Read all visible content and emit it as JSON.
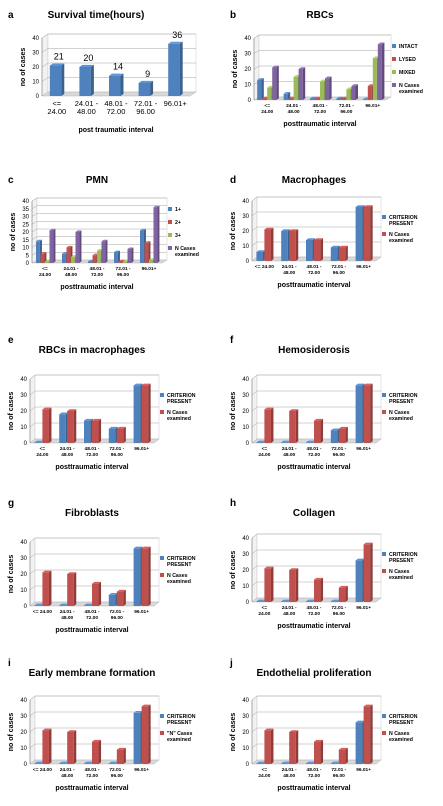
{
  "chart_data": [
    {
      "panel_label": "a",
      "type": "bar",
      "title": "Survival time(hours)",
      "xlabel": "post traumatic interval",
      "ylabel": "no of cases",
      "ylim": [
        0,
        40
      ],
      "yticks": [
        0,
        10,
        20,
        30,
        40
      ],
      "categories": [
        [
          "<=",
          "24.00"
        ],
        [
          "24.01 -",
          "48.00"
        ],
        [
          "48.01 -",
          "72.00"
        ],
        [
          "72.01 -",
          "96.00"
        ],
        [
          "96.01+"
        ]
      ],
      "series": [
        {
          "values": [
            21,
            20,
            14,
            9,
            36
          ],
          "color": "#4f81bd"
        }
      ],
      "data_labels": [
        "21",
        "20",
        "14",
        "9",
        "36"
      ],
      "legend": "none"
    },
    {
      "panel_label": "b",
      "type": "bar",
      "title": "RBCs",
      "xlabel": "posttraumatic interval",
      "ylabel": "no of cases",
      "ylim": [
        0,
        40
      ],
      "yticks": [
        0,
        10,
        20,
        30,
        40
      ],
      "categories": [
        [
          "<=",
          "24.00"
        ],
        [
          "24.01 -",
          "48.00"
        ],
        [
          "48.01 -",
          "72.00"
        ],
        [
          "72.01 -",
          "96.00"
        ],
        [
          "96.01+"
        ]
      ],
      "series": [
        {
          "name": "INTACT",
          "values": [
            13,
            4,
            1,
            1,
            0
          ],
          "color": "#4f81bd"
        },
        {
          "name": "LYSED",
          "values": [
            1,
            1,
            1,
            1,
            9
          ],
          "color": "#c0504d"
        },
        {
          "name": "MIXED",
          "values": [
            8,
            15,
            12,
            7,
            27
          ],
          "color": "#9bbb59"
        },
        {
          "name": [
            "N Cases",
            "examined"
          ],
          "values": [
            21,
            20,
            14,
            9,
            36
          ],
          "color": "#8064a2"
        }
      ],
      "legend": "right"
    },
    {
      "panel_label": "c",
      "type": "bar",
      "title": "PMN",
      "xlabel": "posttraumatic interval",
      "ylabel": "no of cases",
      "ylim": [
        0,
        40
      ],
      "yticks": [
        0,
        5,
        10,
        15,
        20,
        25,
        30,
        35,
        40
      ],
      "categories": [
        [
          "<=",
          "24.00"
        ],
        [
          "24.01 -",
          "48.00"
        ],
        [
          "48.01 -",
          "72.00"
        ],
        [
          "72.01 -",
          "96.00"
        ],
        [
          "96.01+"
        ]
      ],
      "series": [
        {
          "name": "1+",
          "values": [
            14,
            6,
            1,
            7,
            21
          ],
          "color": "#4f81bd"
        },
        {
          "name": "2+",
          "values": [
            6,
            10,
            5,
            1,
            13
          ],
          "color": "#c0504d"
        },
        {
          "name": "3+",
          "values": [
            1,
            4,
            8,
            1,
            2
          ],
          "color": "#9bbb59"
        },
        {
          "name": [
            "N Cases",
            "examined"
          ],
          "values": [
            21,
            20,
            14,
            9,
            36
          ],
          "color": "#8064a2"
        }
      ],
      "legend": "right"
    },
    {
      "panel_label": "d",
      "type": "bar",
      "title": "Macrophages",
      "xlabel": "posttraumatic interval",
      "ylabel": "no of cases",
      "ylim": [
        0,
        40
      ],
      "yticks": [
        0,
        10,
        20,
        30,
        40
      ],
      "categories": [
        [
          "<= 24.00"
        ],
        [
          "24.01 -",
          "48.00"
        ],
        [
          "48.01 -",
          "72.00"
        ],
        [
          "72.01 -",
          "96.00"
        ],
        [
          "96.01+"
        ]
      ],
      "series": [
        {
          "name": [
            "CRITERION",
            "PRESENT"
          ],
          "values": [
            6,
            20,
            14,
            9,
            36
          ],
          "color": "#4f81bd"
        },
        {
          "name": [
            "N Cases",
            "examined"
          ],
          "values": [
            21,
            20,
            14,
            9,
            36
          ],
          "color": "#c0504d"
        }
      ],
      "legend": "right"
    },
    {
      "panel_label": "e",
      "type": "bar",
      "title": "RBCs in macrophages",
      "xlabel": "posttraumatic interval",
      "ylabel": "no of cases",
      "ylim": [
        0,
        40
      ],
      "yticks": [
        0,
        10,
        20,
        30,
        40
      ],
      "categories": [
        [
          "<=",
          "24.00"
        ],
        [
          "24.01 -",
          "48.00"
        ],
        [
          "48.01 -",
          "72.00"
        ],
        [
          "72.01 -",
          "96.00"
        ],
        [
          "96.01+"
        ]
      ],
      "series": [
        {
          "name": [
            "CRITERION",
            "PRESENT"
          ],
          "values": [
            0,
            18,
            14,
            9,
            36
          ],
          "color": "#4f81bd"
        },
        {
          "name": [
            "N Cases",
            "examined"
          ],
          "values": [
            21,
            20,
            14,
            9,
            36
          ],
          "color": "#c0504d"
        }
      ],
      "legend": "right"
    },
    {
      "panel_label": "f",
      "type": "bar",
      "title": "Hemosiderosis",
      "xlabel": "posttraumatic interval",
      "ylabel": "no of cases",
      "ylim": [
        0,
        40
      ],
      "yticks": [
        0,
        10,
        20,
        30,
        40
      ],
      "categories": [
        [
          "<=",
          "24.00"
        ],
        [
          "24.01 -",
          "48.00"
        ],
        [
          "48.01 -",
          "72.00"
        ],
        [
          "72.01 -",
          "96.00"
        ],
        [
          "96.01+"
        ]
      ],
      "series": [
        {
          "name": [
            "CRITERION",
            "PRESENT"
          ],
          "values": [
            0,
            0,
            0,
            8,
            36
          ],
          "color": "#4f81bd"
        },
        {
          "name": [
            "N Cases",
            "examined"
          ],
          "values": [
            21,
            20,
            14,
            9,
            36
          ],
          "color": "#c0504d"
        }
      ],
      "legend": "right"
    },
    {
      "panel_label": "g",
      "type": "bar",
      "title": "Fibroblasts",
      "xlabel": "posttraumatic interval",
      "ylabel": "no of cases",
      "ylim": [
        0,
        40
      ],
      "yticks": [
        0,
        10,
        20,
        30,
        40
      ],
      "categories": [
        [
          "<= 24.00"
        ],
        [
          "24.01 -",
          "48.00"
        ],
        [
          "48.01 -",
          "72.00"
        ],
        [
          "72.01 -",
          "96.00"
        ],
        [
          "96.01+"
        ]
      ],
      "series": [
        {
          "name": [
            "CRITERION",
            "PRESENT"
          ],
          "values": [
            0,
            0,
            0,
            7,
            36
          ],
          "color": "#4f81bd"
        },
        {
          "name": [
            "N Cases",
            "examined"
          ],
          "values": [
            21,
            20,
            14,
            9,
            36
          ],
          "color": "#c0504d"
        }
      ],
      "legend": "right"
    },
    {
      "panel_label": "h",
      "type": "bar",
      "title": "Collagen",
      "xlabel": "posttraumatic interval",
      "ylabel": "no of cases",
      "ylim": [
        0,
        40
      ],
      "yticks": [
        0,
        10,
        20,
        30,
        40
      ],
      "categories": [
        [
          "<=",
          "24.00"
        ],
        [
          "24.01 -",
          "48.00"
        ],
        [
          "48.01 -",
          "72.00"
        ],
        [
          "72.01 -",
          "96.00"
        ],
        [
          "96.01+"
        ]
      ],
      "series": [
        {
          "name": [
            "CRITERION",
            "PRESENT"
          ],
          "values": [
            0,
            0,
            0,
            0,
            26
          ],
          "color": "#4f81bd"
        },
        {
          "name": [
            "N Cases",
            "examined"
          ],
          "values": [
            21,
            20,
            14,
            9,
            36
          ],
          "color": "#c0504d"
        }
      ],
      "legend": "right"
    },
    {
      "panel_label": "i",
      "type": "bar",
      "title": "Early membrane formation",
      "xlabel": "posttraumatic interval",
      "ylabel": "no of cases",
      "ylim": [
        0,
        40
      ],
      "yticks": [
        0,
        10,
        20,
        30,
        40
      ],
      "categories": [
        [
          "<= 24.00"
        ],
        [
          "24.01 -",
          "48.00"
        ],
        [
          "48.01 -",
          "72.00"
        ],
        [
          "72.01 -",
          "96.00"
        ],
        [
          "96.01+"
        ]
      ],
      "series": [
        {
          "name": [
            "CRITERION",
            "PRESENT"
          ],
          "values": [
            0,
            0,
            0,
            0,
            32
          ],
          "color": "#4f81bd"
        },
        {
          "name": [
            "\"N\" Cases",
            "examined"
          ],
          "values": [
            21,
            20,
            14,
            9,
            36
          ],
          "color": "#c0504d"
        }
      ],
      "legend": "right"
    },
    {
      "panel_label": "j",
      "type": "bar",
      "title": "Endothelial proliferation",
      "xlabel": "posttraumatic interval",
      "ylabel": "no of cases",
      "ylim": [
        0,
        40
      ],
      "yticks": [
        0,
        10,
        20,
        30,
        40
      ],
      "categories": [
        [
          "<=",
          "24.00"
        ],
        [
          "24.01 -",
          "48.00"
        ],
        [
          "48.01 -",
          "72.00"
        ],
        [
          "72.01 -",
          "96.00"
        ],
        [
          "96.01+"
        ]
      ],
      "series": [
        {
          "name": [
            "CRITERION",
            "PRESENT"
          ],
          "values": [
            0,
            0,
            0,
            0,
            26
          ],
          "color": "#4f81bd"
        },
        {
          "name": [
            "N Cases",
            "examined"
          ],
          "values": [
            21,
            20,
            14,
            9,
            36
          ],
          "color": "#c0504d"
        }
      ],
      "legend": "right"
    }
  ]
}
